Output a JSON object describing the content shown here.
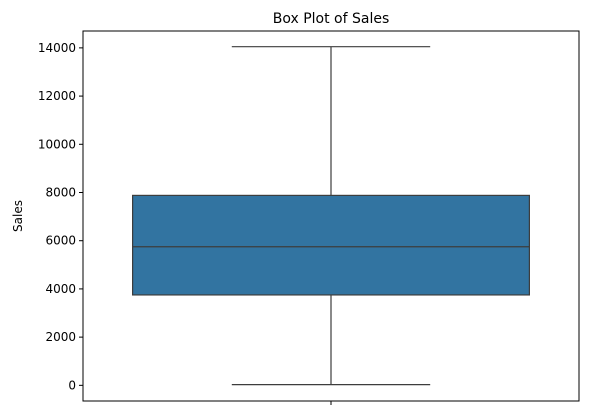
{
  "chart_data": {
    "type": "box",
    "title": "Box Plot of Sales",
    "xlabel": "",
    "ylabel": "Sales",
    "ylim": [
      -650,
      14700
    ],
    "yticks": [
      0,
      2000,
      4000,
      6000,
      8000,
      10000,
      12000,
      14000
    ],
    "ytick_labels": [
      "0",
      "2000",
      "4000",
      "6000",
      "8000",
      "10000",
      "12000",
      "14000"
    ],
    "box": {
      "min": 30,
      "q1": 3750,
      "median": 5750,
      "q3": 7880,
      "max": 14050,
      "fill_color": "#3274a1",
      "line_color": "#3d3d3d"
    },
    "grid": false,
    "legend": "none"
  }
}
